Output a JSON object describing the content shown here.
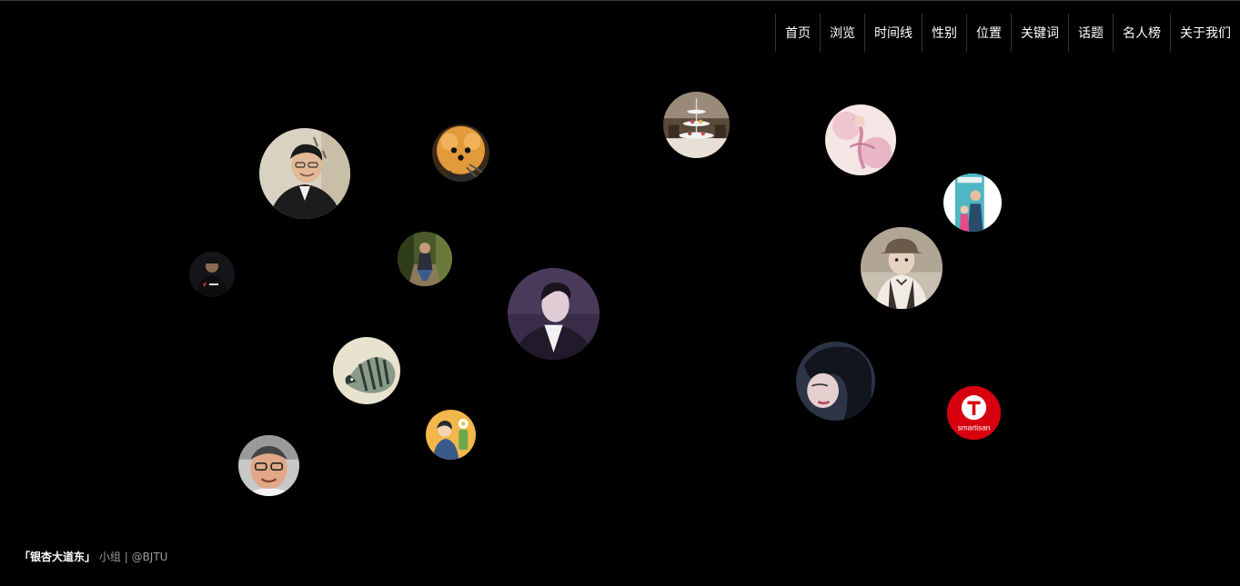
{
  "nav": {
    "items": [
      {
        "label": "首页"
      },
      {
        "label": "浏览"
      },
      {
        "label": "时间线"
      },
      {
        "label": "性别"
      },
      {
        "label": "位置"
      },
      {
        "label": "关键词"
      },
      {
        "label": "话题"
      },
      {
        "label": "名人榜"
      },
      {
        "label": "关于我们"
      }
    ]
  },
  "bubbles": {
    "smartisan_logo_text": "smartisan"
  },
  "footer": {
    "team": "「银杏大道东」",
    "group": "小组",
    "separator": "|",
    "handle": "@BJTU"
  },
  "colors": {
    "background": "#000000",
    "nav_text": "#ffffff",
    "footer_text": "#9a9a9a",
    "smartisan_red": "#d7000f"
  }
}
